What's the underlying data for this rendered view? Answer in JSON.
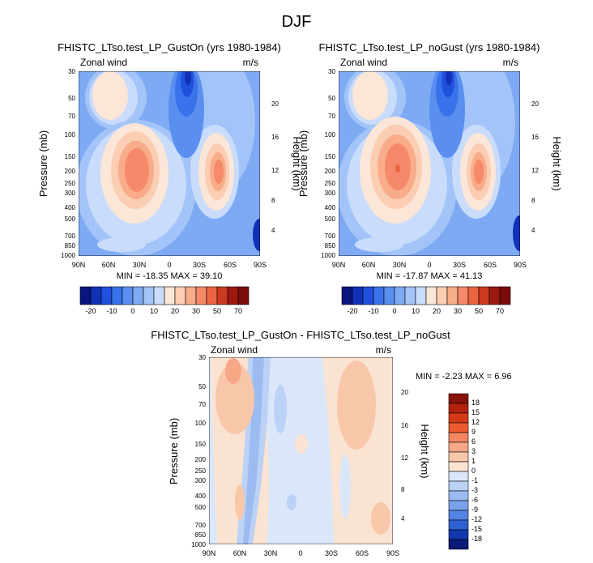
{
  "figure": {
    "title": "DJF"
  },
  "chart_data": [
    {
      "type": "heatmap",
      "title": "FHISTC_LTso.test_LP_GustOn (yrs 1980-1984)",
      "left_label": "Zonal wind",
      "right_label": "m/s",
      "xlabel": "",
      "ylabel": "Pressure (mb)",
      "ylabel_right": "Height (km)",
      "x_ticks": [
        "90N",
        "60N",
        "30N",
        "0",
        "30S",
        "60S",
        "90S"
      ],
      "y_ticks": [
        30,
        50,
        70,
        100,
        150,
        200,
        250,
        300,
        400,
        500,
        700,
        850,
        1000
      ],
      "y_right_ticks": [
        20,
        16,
        12,
        8,
        4
      ],
      "ylim": [
        1000,
        30
      ],
      "xlim": [
        "90N",
        "90S"
      ],
      "min": -18.35,
      "max": 39.1,
      "stats_label": "MIN = -18.35  MAX = 39.10",
      "colorbar_levels": [
        -20,
        -10,
        0,
        10,
        20,
        30,
        50,
        70
      ]
    },
    {
      "type": "heatmap",
      "title": "FHISTC_LTso.test_LP_noGust (yrs 1980-1984)",
      "left_label": "Zonal wind",
      "right_label": "m/s",
      "xlabel": "",
      "ylabel": "Pressure (mb)",
      "ylabel_right": "Height (km)",
      "x_ticks": [
        "90N",
        "60N",
        "30N",
        "0",
        "30S",
        "60S",
        "90S"
      ],
      "y_ticks": [
        30,
        50,
        70,
        100,
        150,
        200,
        250,
        300,
        400,
        500,
        700,
        850,
        1000
      ],
      "y_right_ticks": [
        20,
        16,
        12,
        8,
        4
      ],
      "ylim": [
        1000,
        30
      ],
      "xlim": [
        "90N",
        "90S"
      ],
      "min": -17.87,
      "max": 41.13,
      "stats_label": "MIN = -17.87  MAX = 41.13",
      "colorbar_levels": [
        -20,
        -10,
        0,
        10,
        20,
        30,
        50,
        70
      ]
    },
    {
      "type": "heatmap",
      "title": "FHISTC_LTso.test_LP_GustOn - FHISTC_LTso.test_LP_noGust",
      "left_label": "Zonal wind",
      "right_label": "m/s",
      "xlabel": "",
      "ylabel": "Pressure (mb)",
      "ylabel_right": "Height (km)",
      "x_ticks": [
        "90N",
        "60N",
        "30N",
        "0",
        "30S",
        "60S",
        "90S"
      ],
      "y_ticks": [
        30,
        50,
        70,
        100,
        150,
        200,
        250,
        300,
        400,
        500,
        700,
        850,
        1000
      ],
      "y_right_ticks": [
        20,
        16,
        12,
        8,
        4
      ],
      "ylim": [
        1000,
        30
      ],
      "xlim": [
        "90N",
        "90S"
      ],
      "min": -2.23,
      "max": 6.96,
      "stats_label": "MIN = -2.23  MAX =  6.96",
      "colorbar_levels": [
        18,
        15,
        12,
        9,
        6,
        3,
        1,
        0,
        -1,
        -3,
        -6,
        -9,
        -12,
        -15,
        -18
      ]
    }
  ],
  "colors": {
    "abs_scale": [
      "#0b1580",
      "#1231b8",
      "#1f50de",
      "#3a72ec",
      "#5a8ff0",
      "#7eaaf4",
      "#a3c4f8",
      "#c9dcfb",
      "#fbe6d8",
      "#fbcdb2",
      "#f9ac8a",
      "#f5896a",
      "#ec6541",
      "#cc3920",
      "#9c1910",
      "#7a0d0b"
    ],
    "diff_scale": [
      "#8a1309",
      "#b3210f",
      "#d53a17",
      "#ec5a30",
      "#f38560",
      "#f6a886",
      "#f8c7a9",
      "#fbe3d2",
      "#dae7fa",
      "#bbd2f6",
      "#9cbbf1",
      "#7aa2ec",
      "#5583e4",
      "#3061d3",
      "#1238b0",
      "#0a1a78"
    ]
  }
}
